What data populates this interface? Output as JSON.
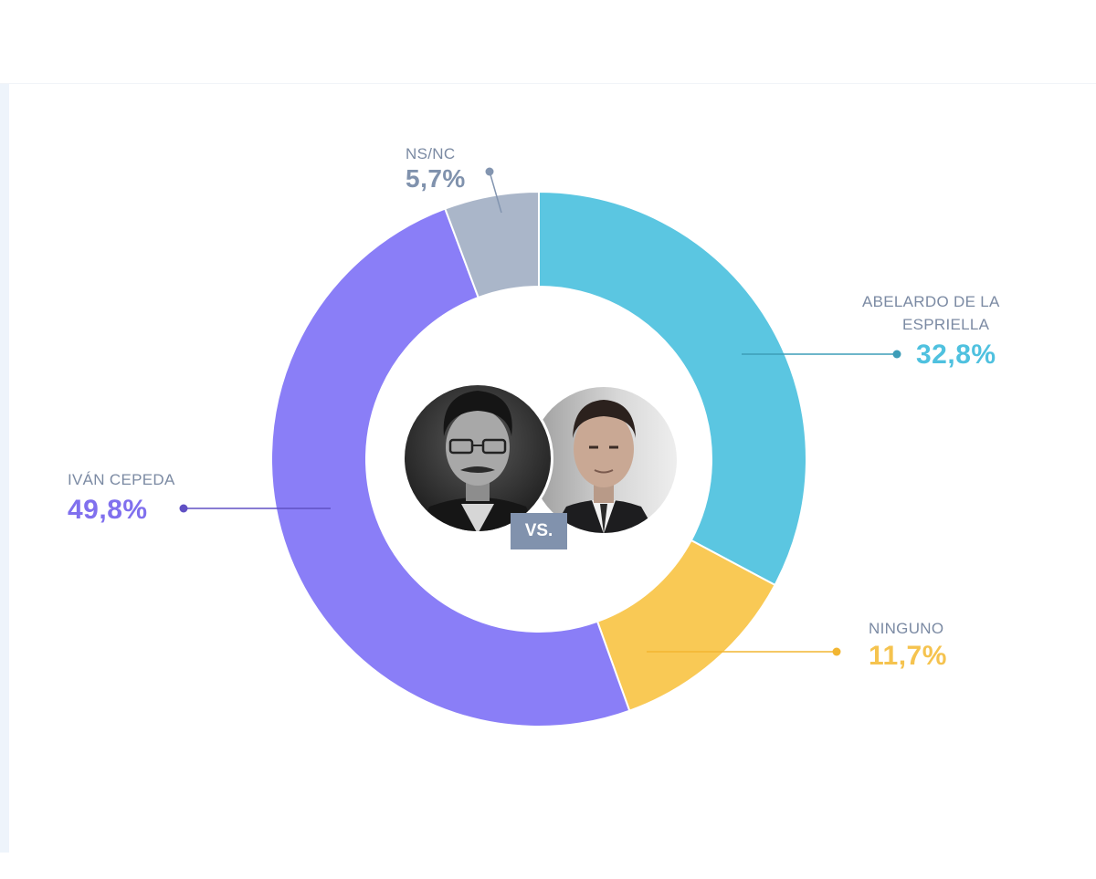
{
  "chart_data": {
    "type": "pie",
    "subtype": "donut",
    "slices": [
      {
        "label": "ABELARDO DE LA ESPRIELLA",
        "label_line1": "ABELARDO DE LA",
        "label_line2": "ESPRIELLA",
        "value": 32.8,
        "display": "32,8%",
        "color": "#5bc6e1",
        "text_color": "#4fc1df",
        "line_color": "#3d9db8"
      },
      {
        "label": "NINGUNO",
        "value": 11.7,
        "display": "11,7%",
        "color": "#f9c955",
        "text_color": "#f5c34f",
        "line_color": "#f2b632"
      },
      {
        "label": "IVÁN CEPEDA",
        "value": 49.8,
        "display": "49,8%",
        "color": "#8a7ef7",
        "text_color": "#8070ee",
        "line_color": "#6050c4"
      },
      {
        "label": "NS/NC",
        "value": 5.7,
        "display": "5,7%",
        "color": "#aab6c9",
        "text_color": "#8092ad",
        "line_color": "#8395b0"
      }
    ]
  },
  "center": {
    "badge_text": "VS.",
    "photos": [
      "portrait-ivan-cepeda",
      "portrait-abelardo-de-la-espriella"
    ]
  }
}
